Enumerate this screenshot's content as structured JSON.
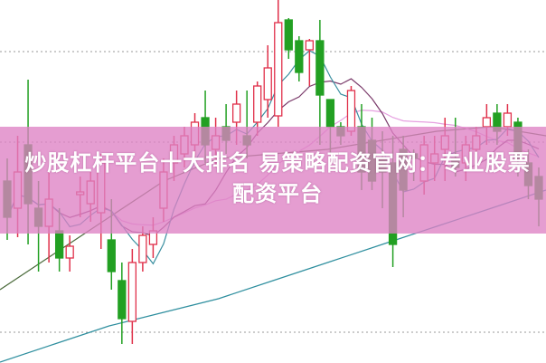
{
  "title": "炒股杠杆平台十大排名 易策略配资官网：专业股票配资平台",
  "colors": {
    "up": "#e0304a",
    "down": "#22a022",
    "band": "#de82c4",
    "ma5": "#3a8fa0",
    "ma10": "#7a3a6a",
    "ma20": "#e6a0e0",
    "ma_long": "#2f8f9f",
    "ma_mid": "#4a6a3a",
    "grid": "#999999"
  },
  "chart_data": {
    "type": "candlestick",
    "title": "",
    "xlabel": "",
    "ylabel": "",
    "ylim": [
      0,
      400
    ],
    "grid": "dotted horizontal",
    "legend": "none",
    "candles": [
      [
        200,
        160,
        225,
        135
      ],
      [
        170,
        210,
        250,
        138
      ],
      [
        240,
        175,
        312,
        130
      ],
      [
        170,
        150,
        200,
        100
      ],
      [
        150,
        180,
        210,
        110
      ],
      [
        145,
        115,
        170,
        100
      ],
      [
        115,
        128,
        140,
        100
      ],
      [
        185,
        188,
        205,
        160
      ],
      [
        175,
        200,
        210,
        155
      ],
      [
        165,
        220,
        230,
        125
      ],
      [
        135,
        100,
        180,
        80
      ],
      [
        90,
        48,
        110,
        20
      ],
      [
        45,
        110,
        125,
        20
      ],
      [
        110,
        140,
        150,
        100
      ],
      [
        130,
        145,
        160,
        115
      ],
      [
        170,
        210,
        225,
        155
      ],
      [
        220,
        240,
        250,
        200
      ],
      [
        230,
        250,
        260,
        215
      ],
      [
        240,
        265,
        275,
        225
      ],
      [
        270,
        240,
        300,
        220
      ],
      [
        235,
        250,
        270,
        215
      ],
      [
        260,
        245,
        285,
        230
      ],
      [
        265,
        285,
        300,
        240
      ],
      [
        250,
        240,
        300,
        225
      ],
      [
        265,
        305,
        310,
        250
      ],
      [
        290,
        325,
        350,
        270
      ],
      [
        272,
        375,
        400,
        260
      ],
      [
        378,
        345,
        380,
        335
      ],
      [
        355,
        320,
        360,
        310
      ],
      [
        345,
        355,
        357,
        305
      ],
      [
        355,
        295,
        378,
        240
      ],
      [
        290,
        260,
        290,
        230
      ],
      [
        260,
        250,
        265,
        240
      ],
      [
        255,
        300,
        305,
        250
      ],
      [
        260,
        210,
        285,
        190
      ],
      [
        245,
        200,
        270,
        190
      ],
      [
        225,
        210,
        255,
        170
      ],
      [
        220,
        130,
        250,
        105
      ],
      [
        235,
        190,
        250,
        160
      ],
      [
        230,
        225,
        235,
        200
      ],
      [
        200,
        240,
        250,
        185
      ],
      [
        220,
        230,
        250,
        200
      ],
      [
        235,
        250,
        270,
        200
      ],
      [
        225,
        215,
        270,
        205
      ],
      [
        220,
        240,
        250,
        200
      ],
      [
        235,
        250,
        260,
        215
      ],
      [
        260,
        270,
        285,
        240
      ],
      [
        275,
        255,
        285,
        240
      ],
      [
        260,
        275,
        285,
        250
      ],
      [
        265,
        225,
        270,
        205
      ],
      [
        220,
        195,
        235,
        180
      ],
      [
        205,
        180,
        215,
        150
      ]
    ],
    "candle_fields": [
      "open",
      "close",
      "high",
      "low"
    ],
    "ma_long": [
      0,
      20,
      40,
      55,
      70,
      90,
      110,
      130,
      150,
      170,
      190
    ],
    "ma_mid": [
      80,
      120,
      160,
      200,
      225,
      230,
      235,
      245,
      255,
      260,
      250
    ]
  }
}
